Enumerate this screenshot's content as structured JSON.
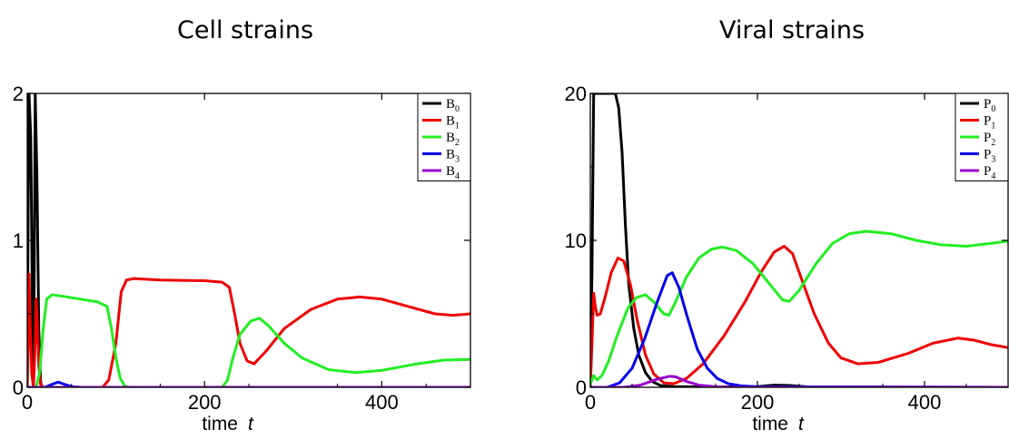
{
  "chart_data": [
    {
      "type": "line",
      "title": "Cell strains",
      "xlabel": "time",
      "xlabel_var": "t",
      "xlim": [
        0,
        500
      ],
      "ylim": [
        0,
        2
      ],
      "x_ticks": [
        0,
        200,
        400
      ],
      "y_ticks": [
        0,
        1,
        2
      ],
      "grid": false,
      "legend_position": "top-right",
      "series": [
        {
          "name": "B",
          "sub": "0",
          "color": "#000000",
          "points": [
            [
              0,
              0
            ],
            [
              1,
              1.2
            ],
            [
              2,
              2.0
            ],
            [
              4,
              1.7
            ],
            [
              6,
              0.4
            ],
            [
              7,
              0
            ],
            [
              8,
              0.9
            ],
            [
              9,
              2.0
            ],
            [
              11,
              1.4
            ],
            [
              13,
              0.4
            ],
            [
              15,
              0.05
            ],
            [
              16,
              0
            ],
            [
              500,
              0
            ]
          ]
        },
        {
          "name": "B",
          "sub": "1",
          "color": "#ee0000",
          "points": [
            [
              0,
              0
            ],
            [
              1,
              0.3
            ],
            [
              2,
              0.77
            ],
            [
              3,
              0.5
            ],
            [
              5,
              0.1
            ],
            [
              7,
              0
            ],
            [
              9,
              0.3
            ],
            [
              10,
              0.6
            ],
            [
              11,
              0.5
            ],
            [
              13,
              0.15
            ],
            [
              15,
              0.02
            ],
            [
              18,
              0
            ],
            [
              85,
              0
            ],
            [
              92,
              0.05
            ],
            [
              100,
              0.3
            ],
            [
              106,
              0.65
            ],
            [
              112,
              0.73
            ],
            [
              120,
              0.74
            ],
            [
              150,
              0.73
            ],
            [
              200,
              0.725
            ],
            [
              220,
              0.715
            ],
            [
              228,
              0.68
            ],
            [
              234,
              0.5
            ],
            [
              240,
              0.3
            ],
            [
              248,
              0.18
            ],
            [
              256,
              0.16
            ],
            [
              270,
              0.25
            ],
            [
              290,
              0.4
            ],
            [
              320,
              0.53
            ],
            [
              350,
              0.6
            ],
            [
              375,
              0.615
            ],
            [
              400,
              0.6
            ],
            [
              430,
              0.55
            ],
            [
              460,
              0.5
            ],
            [
              480,
              0.49
            ],
            [
              500,
              0.5
            ]
          ]
        },
        {
          "name": "B",
          "sub": "2",
          "color": "#22ee22",
          "points": [
            [
              0,
              0
            ],
            [
              10,
              0
            ],
            [
              14,
              0.1
            ],
            [
              18,
              0.4
            ],
            [
              22,
              0.6
            ],
            [
              28,
              0.63
            ],
            [
              40,
              0.62
            ],
            [
              60,
              0.6
            ],
            [
              80,
              0.58
            ],
            [
              90,
              0.55
            ],
            [
              95,
              0.4
            ],
            [
              100,
              0.2
            ],
            [
              105,
              0.06
            ],
            [
              110,
              0.01
            ],
            [
              115,
              0
            ],
            [
              220,
              0
            ],
            [
              226,
              0.05
            ],
            [
              232,
              0.2
            ],
            [
              240,
              0.36
            ],
            [
              252,
              0.45
            ],
            [
              262,
              0.47
            ],
            [
              272,
              0.42
            ],
            [
              290,
              0.3
            ],
            [
              310,
              0.2
            ],
            [
              340,
              0.12
            ],
            [
              370,
              0.1
            ],
            [
              400,
              0.115
            ],
            [
              440,
              0.16
            ],
            [
              470,
              0.185
            ],
            [
              500,
              0.19
            ]
          ]
        },
        {
          "name": "B",
          "sub": "3",
          "color": "#0000ee",
          "points": [
            [
              0,
              0
            ],
            [
              20,
              0
            ],
            [
              28,
              0.02
            ],
            [
              35,
              0.035
            ],
            [
              42,
              0.02
            ],
            [
              50,
              0.005
            ],
            [
              60,
              0
            ],
            [
              500,
              0
            ]
          ]
        },
        {
          "name": "B",
          "sub": "4",
          "color": "#9900cc",
          "points": [
            [
              0,
              0
            ],
            [
              500,
              0
            ]
          ]
        }
      ]
    },
    {
      "type": "line",
      "title": "Viral strains",
      "xlabel": "time",
      "xlabel_var": "t",
      "xlim": [
        0,
        500
      ],
      "ylim": [
        0,
        20
      ],
      "x_ticks": [
        0,
        200,
        400
      ],
      "y_ticks": [
        0,
        10,
        20
      ],
      "grid": false,
      "legend_position": "top-right",
      "series": [
        {
          "name": "P",
          "sub": "0",
          "color": "#000000",
          "points": [
            [
              0,
              0
            ],
            [
              2,
              8
            ],
            [
              4,
              20
            ],
            [
              8,
              20
            ],
            [
              30,
              20
            ],
            [
              34,
              19
            ],
            [
              38,
              16
            ],
            [
              42,
              11
            ],
            [
              46,
              7
            ],
            [
              52,
              4
            ],
            [
              58,
              2.2
            ],
            [
              66,
              1.0
            ],
            [
              74,
              0.4
            ],
            [
              84,
              0.12
            ],
            [
              100,
              0.05
            ],
            [
              140,
              0.02
            ],
            [
              200,
              0.05
            ],
            [
              220,
              0.15
            ],
            [
              240,
              0.12
            ],
            [
              260,
              0.03
            ],
            [
              300,
              0.02
            ],
            [
              500,
              0
            ]
          ]
        },
        {
          "name": "P",
          "sub": "1",
          "color": "#ee0000",
          "points": [
            [
              0,
              0
            ],
            [
              2,
              3
            ],
            [
              4,
              6.4
            ],
            [
              6,
              5.5
            ],
            [
              8,
              4.9
            ],
            [
              12,
              5.0
            ],
            [
              18,
              6.2
            ],
            [
              25,
              7.8
            ],
            [
              33,
              8.8
            ],
            [
              40,
              8.6
            ],
            [
              48,
              7.0
            ],
            [
              56,
              4.6
            ],
            [
              66,
              2.2
            ],
            [
              76,
              0.9
            ],
            [
              88,
              0.3
            ],
            [
              100,
              0.25
            ],
            [
              115,
              0.6
            ],
            [
              135,
              1.6
            ],
            [
              160,
              3.5
            ],
            [
              185,
              5.8
            ],
            [
              205,
              7.9
            ],
            [
              220,
              9.2
            ],
            [
              232,
              9.6
            ],
            [
              242,
              9.1
            ],
            [
              252,
              7.5
            ],
            [
              268,
              5.0
            ],
            [
              285,
              3.0
            ],
            [
              300,
              2.0
            ],
            [
              320,
              1.6
            ],
            [
              345,
              1.7
            ],
            [
              380,
              2.3
            ],
            [
              410,
              3.0
            ],
            [
              440,
              3.35
            ],
            [
              460,
              3.2
            ],
            [
              480,
              2.9
            ],
            [
              500,
              2.7
            ]
          ]
        },
        {
          "name": "P",
          "sub": "2",
          "color": "#22ee22",
          "points": [
            [
              0,
              0.2
            ],
            [
              4,
              0.8
            ],
            [
              8,
              0.5
            ],
            [
              14,
              0.8
            ],
            [
              22,
              1.8
            ],
            [
              32,
              3.5
            ],
            [
              45,
              5.4
            ],
            [
              55,
              6.1
            ],
            [
              66,
              6.3
            ],
            [
              76,
              5.8
            ],
            [
              88,
              5.0
            ],
            [
              94,
              4.9
            ],
            [
              102,
              5.8
            ],
            [
              115,
              7.5
            ],
            [
              130,
              8.8
            ],
            [
              145,
              9.4
            ],
            [
              158,
              9.55
            ],
            [
              175,
              9.3
            ],
            [
              195,
              8.4
            ],
            [
              215,
              7.0
            ],
            [
              230,
              5.95
            ],
            [
              238,
              5.85
            ],
            [
              250,
              6.6
            ],
            [
              270,
              8.4
            ],
            [
              290,
              9.8
            ],
            [
              310,
              10.45
            ],
            [
              330,
              10.62
            ],
            [
              360,
              10.45
            ],
            [
              390,
              10.0
            ],
            [
              420,
              9.7
            ],
            [
              450,
              9.6
            ],
            [
              480,
              9.8
            ],
            [
              500,
              9.95
            ]
          ]
        },
        {
          "name": "P",
          "sub": "3",
          "color": "#0000ee",
          "points": [
            [
              0,
              0
            ],
            [
              20,
              0
            ],
            [
              35,
              0.3
            ],
            [
              50,
              1.3
            ],
            [
              65,
              3.3
            ],
            [
              80,
              5.8
            ],
            [
              92,
              7.6
            ],
            [
              98,
              7.8
            ],
            [
              106,
              6.8
            ],
            [
              116,
              4.8
            ],
            [
              128,
              2.6
            ],
            [
              140,
              1.3
            ],
            [
              152,
              0.6
            ],
            [
              165,
              0.25
            ],
            [
              180,
              0.1
            ],
            [
              200,
              0.04
            ],
            [
              500,
              0
            ]
          ]
        },
        {
          "name": "P",
          "sub": "4",
          "color": "#9900cc",
          "points": [
            [
              0,
              0
            ],
            [
              40,
              0
            ],
            [
              60,
              0.15
            ],
            [
              80,
              0.55
            ],
            [
              95,
              0.75
            ],
            [
              102,
              0.72
            ],
            [
              115,
              0.4
            ],
            [
              130,
              0.15
            ],
            [
              150,
              0.04
            ],
            [
              170,
              0
            ],
            [
              500,
              0
            ]
          ]
        }
      ]
    }
  ]
}
